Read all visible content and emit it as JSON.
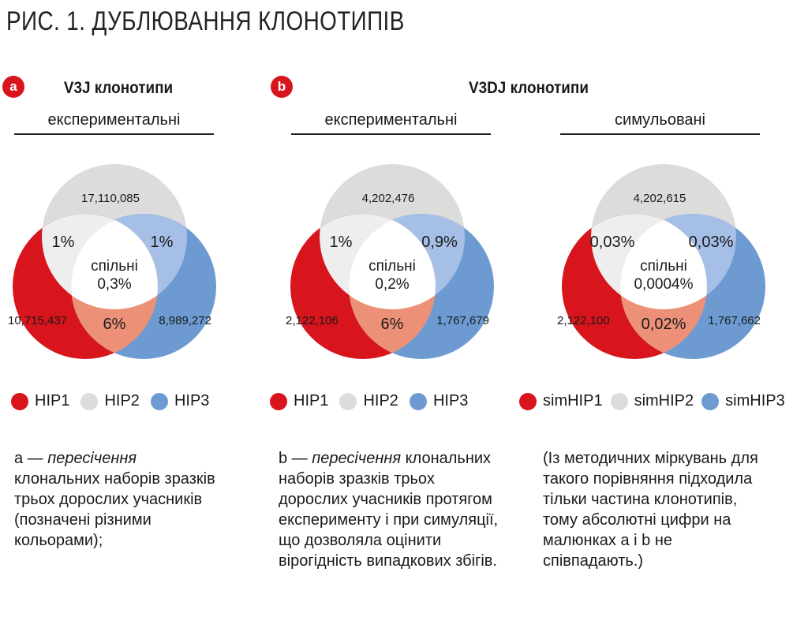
{
  "title": "РИС. 1. ДУБЛЮВАННЯ КЛОНОТИПІВ",
  "colors": {
    "hip1": "#d8141c",
    "hip2": "#dcdcdc",
    "hip3": "#6d9bd1",
    "hip12": "#eeeeee",
    "hip23": "#a6bfe6",
    "hip13": "#ec9178",
    "center": "#ffffff"
  },
  "panel_a": {
    "badge": "a",
    "heading": "V3J клонотипи",
    "sub": "експериментальні",
    "venn": {
      "top": "17,110,085",
      "left": "10,715,437",
      "right": "8,989,272",
      "tl": "1%",
      "tr": "1%",
      "bottom": "6%",
      "center_label": "спільні",
      "center_value": "0,3%"
    },
    "legend": [
      "HIP1",
      "HIP2",
      "HIP3"
    ],
    "note": {
      "prefix": "a — ",
      "italic": "пересічення",
      "rest": "клональних наборів зразків трьох дорослих учасників (позначені різними кольорами);"
    }
  },
  "panel_b": {
    "badge": "b",
    "heading": "V3DJ клонотипи",
    "sub_exp": "експериментальні",
    "sub_sim": "симульовані",
    "venn_exp": {
      "top": "4,202,476",
      "left": "2,122,106",
      "right": "1,767,679",
      "tl": "1%",
      "tr": "0,9%",
      "bottom": "6%",
      "center_label": "спільні",
      "center_value": "0,2%"
    },
    "venn_sim": {
      "top": "4,202,615",
      "left": "2,122,100",
      "right": "1,767,662",
      "tl": "0,03%",
      "tr": "0,03%",
      "bottom": "0,02%",
      "center_label": "спільні",
      "center_value": "0,0004%"
    },
    "legend_exp": [
      "HIP1",
      "HIP2",
      "HIP3"
    ],
    "legend_sim": [
      "simHIP1",
      "simHIP2",
      "simHIP3"
    ],
    "note": {
      "prefix": "b — ",
      "italic": "пересічення",
      "rest": "клональних наборів зразків трьох дорослих учасників протягом експерименту і при симуляції, що дозволяла оцінити вірогідність випадкових збігів."
    },
    "note_sim": "(Із методичних міркувань для такого порівняння підходила тільки частина клонотипів, тому абсолютні цифри на малюнках a і b не співпадають.)"
  }
}
